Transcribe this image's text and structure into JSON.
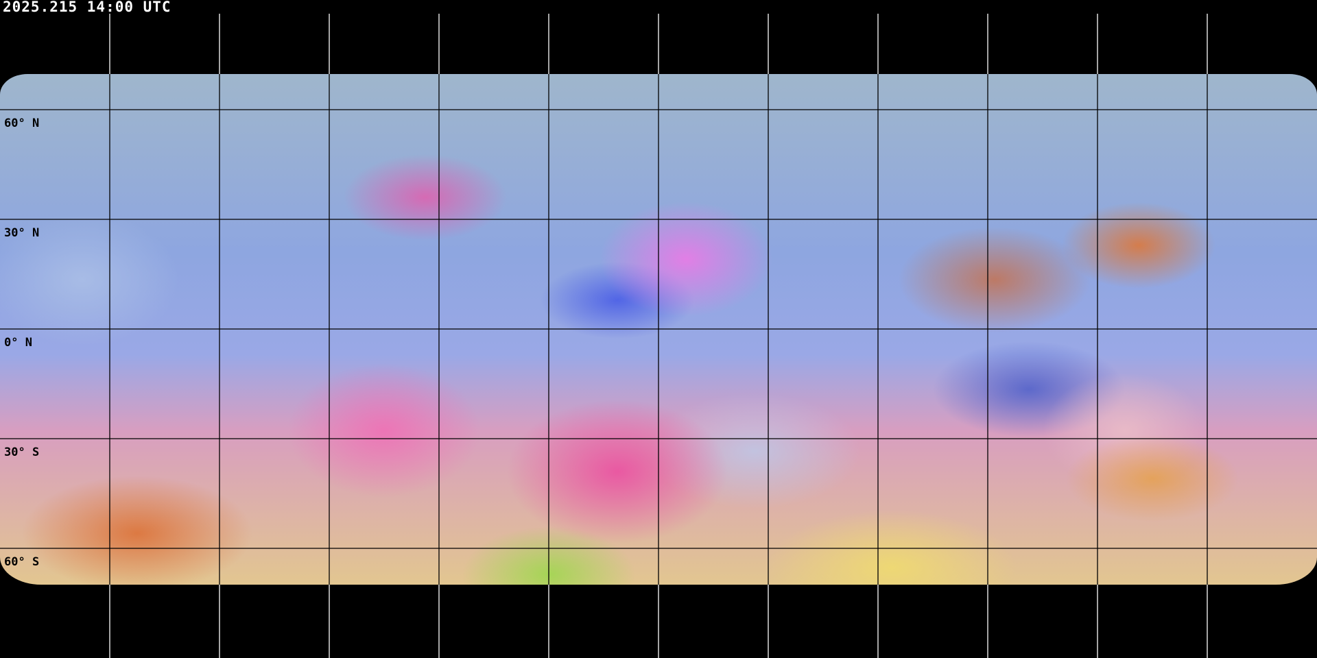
{
  "timestamp": "2025.215 14:00 UTC",
  "latitude_labels": [
    "60° N",
    "30° N",
    "0° N",
    "30° S",
    "60° S"
  ],
  "grid": {
    "longitude_spacing_deg": 30,
    "latitude_spacing_deg": 30,
    "line_color_on_imagery": "#000000",
    "line_color_on_background": "#ffffff"
  },
  "projection": "equirectangular",
  "colors": {
    "background": "#000000",
    "coastline_land": "#000000",
    "coastline_polar": "#ffffff"
  }
}
